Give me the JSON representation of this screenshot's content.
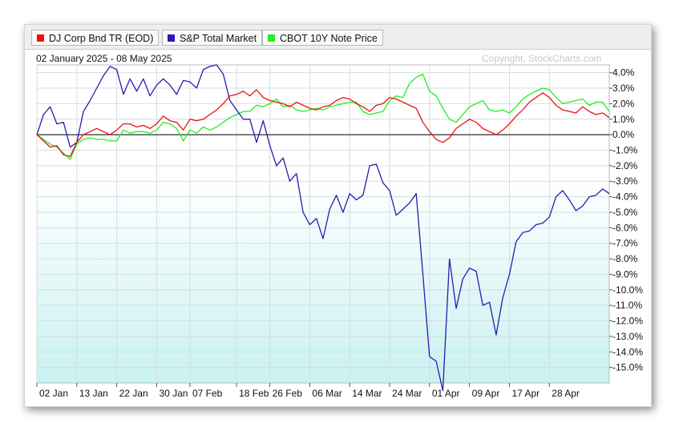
{
  "legend": [
    {
      "label": "DJ Corp Bnd TR (EOD)",
      "color": "#ee1111"
    },
    {
      "label": "S&P Total Market",
      "color": "#2a1bb0"
    },
    {
      "label": "CBOT 10Y Note Price",
      "color": "#22ee22"
    }
  ],
  "subtitle": "02 January 2025 - 08 May 2025",
  "copyright": "Copyright, StockCharts.com",
  "chart_data": {
    "type": "line",
    "ylim": [
      -16.0,
      4.5
    ],
    "y_ticks": [
      4.0,
      3.0,
      2.0,
      1.0,
      0.0,
      -1.0,
      -2.0,
      -3.0,
      -4.0,
      -5.0,
      -6.0,
      -7.0,
      -8.0,
      -9.0,
      -10.0,
      -11.0,
      -12.0,
      -13.0,
      -14.0,
      -15.0
    ],
    "y_tick_labels": [
      "4.0%",
      "3.0%",
      "2.0%",
      "1.0%",
      "0.0%",
      "-1.0%",
      "-2.0%",
      "-3.0%",
      "-4.0%",
      "-5.0%",
      "-6.0%",
      "-7.0%",
      "-8.0%",
      "-9.0%",
      "-10.0%",
      "-11.0%",
      "-12.0%",
      "-13.0%",
      "-14.0%",
      "-15.0%"
    ],
    "x_ticks": [
      {
        "index": 0,
        "label": "02 Jan"
      },
      {
        "index": 6,
        "label": "13 Jan"
      },
      {
        "index": 12,
        "label": "22 Jan"
      },
      {
        "index": 18,
        "label": "30 Jan"
      },
      {
        "index": 23,
        "label": "07 Feb"
      },
      {
        "index": 30,
        "label": "18 Feb"
      },
      {
        "index": 35,
        "label": "26 Feb"
      },
      {
        "index": 41,
        "label": "06 Mar"
      },
      {
        "index": 47,
        "label": "14 Mar"
      },
      {
        "index": 53,
        "label": "24 Mar"
      },
      {
        "index": 59,
        "label": "01 Apr"
      },
      {
        "index": 65,
        "label": "09 Apr"
      },
      {
        "index": 71,
        "label": "17 Apr"
      },
      {
        "index": 77,
        "label": "28 Apr"
      }
    ],
    "x_count": 87,
    "series": [
      {
        "name": "DJ Corp Bnd TR (EOD)",
        "color": "#ee1111",
        "values": [
          0.0,
          -0.4,
          -0.8,
          -0.7,
          -1.3,
          -1.4,
          -0.5,
          0.0,
          0.2,
          0.4,
          0.2,
          0.0,
          0.3,
          0.7,
          0.7,
          0.5,
          0.6,
          0.4,
          0.7,
          1.2,
          0.9,
          0.8,
          0.3,
          1.0,
          0.9,
          1.0,
          1.3,
          1.6,
          2.0,
          2.5,
          2.6,
          2.8,
          2.5,
          2.9,
          2.4,
          2.2,
          2.1,
          2.0,
          1.8,
          2.1,
          1.9,
          1.7,
          1.6,
          1.8,
          1.9,
          2.2,
          2.4,
          2.3,
          2.0,
          1.8,
          1.5,
          1.9,
          2.0,
          2.4,
          2.3,
          2.1,
          1.9,
          1.7,
          0.8,
          0.2,
          -0.3,
          -0.5,
          -0.2,
          0.4,
          0.7,
          1.0,
          0.8,
          0.4,
          0.2,
          0.0,
          0.3,
          0.7,
          1.2,
          1.6,
          2.1,
          2.4,
          2.7,
          2.4,
          1.9,
          1.6,
          1.5,
          1.4,
          1.8,
          1.5,
          1.3,
          1.4,
          1.1
        ]
      },
      {
        "name": "S&P Total Market",
        "color": "#2a1bb0",
        "values": [
          0.0,
          1.3,
          1.8,
          0.7,
          0.8,
          -0.8,
          -0.5,
          1.5,
          2.2,
          3.0,
          3.8,
          4.4,
          4.2,
          2.6,
          3.6,
          2.8,
          3.6,
          2.5,
          3.2,
          3.6,
          3.2,
          2.6,
          3.5,
          3.4,
          3.0,
          4.2,
          4.4,
          4.5,
          3.9,
          2.2,
          1.6,
          1.0,
          1.0,
          -0.5,
          0.9,
          -0.7,
          -2.0,
          -1.5,
          -3.0,
          -2.5,
          -5.0,
          -5.8,
          -5.4,
          -6.7,
          -4.8,
          -3.9,
          -5.0,
          -3.8,
          -4.2,
          -3.9,
          -2.0,
          -1.9,
          -3.1,
          -3.6,
          -5.2,
          -4.8,
          -4.4,
          -3.8,
          -9.0,
          -14.3,
          -14.6,
          -16.5,
          -8.0,
          -11.2,
          -9.3,
          -8.6,
          -8.8,
          -11.0,
          -10.8,
          -12.9,
          -10.5,
          -9.0,
          -6.9,
          -6.3,
          -6.2,
          -5.8,
          -5.7,
          -5.3,
          -4.0,
          -3.6,
          -4.2,
          -4.9,
          -4.6,
          -4.0,
          -3.9,
          -3.5,
          -3.8
        ]
      },
      {
        "name": "CBOT 10Y Note Price",
        "color": "#22ee22",
        "values": [
          0.0,
          -0.3,
          -0.6,
          -0.8,
          -1.2,
          -1.6,
          -0.6,
          -0.3,
          -0.2,
          -0.3,
          -0.3,
          -0.4,
          -0.4,
          0.3,
          0.1,
          0.2,
          0.2,
          0.1,
          0.3,
          0.8,
          0.7,
          0.4,
          -0.4,
          0.3,
          0.1,
          0.5,
          0.3,
          0.5,
          0.8,
          1.1,
          1.3,
          1.5,
          1.5,
          1.9,
          1.8,
          2.0,
          2.3,
          1.8,
          1.9,
          1.6,
          1.5,
          1.6,
          1.7,
          1.6,
          1.8,
          1.9,
          2.0,
          2.1,
          2.1,
          1.5,
          1.3,
          1.4,
          1.5,
          2.2,
          2.5,
          2.4,
          3.3,
          3.7,
          3.9,
          2.8,
          2.5,
          1.7,
          1.0,
          0.8,
          1.3,
          1.8,
          2.0,
          2.2,
          1.6,
          1.5,
          1.6,
          1.4,
          1.8,
          2.3,
          2.6,
          2.8,
          3.0,
          2.9,
          2.4,
          2.0,
          2.1,
          2.2,
          2.3,
          1.9,
          2.1,
          2.1,
          1.5
        ]
      }
    ]
  }
}
